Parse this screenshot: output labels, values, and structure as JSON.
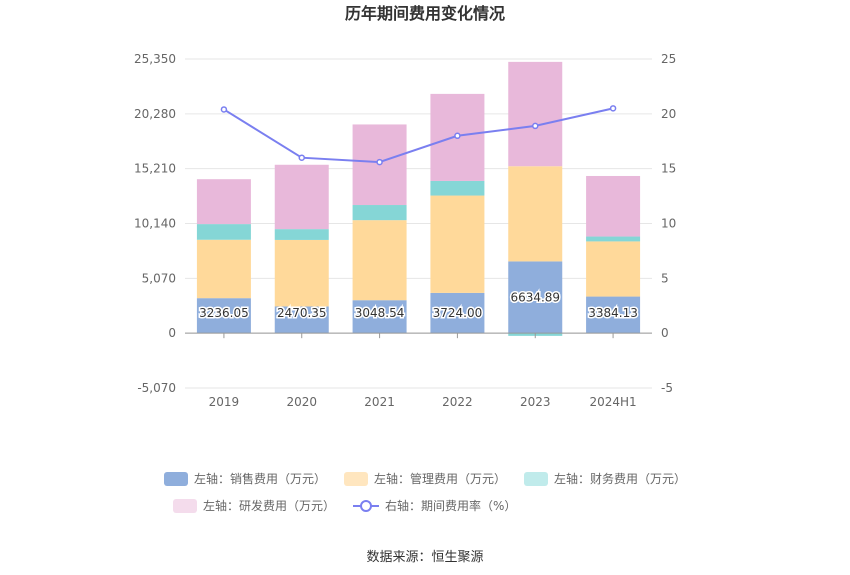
{
  "chart_data": {
    "type": "bar",
    "title": "历年期间费用变化情况",
    "categories": [
      "2019",
      "2020",
      "2021",
      "2022",
      "2023",
      "2024H1"
    ],
    "left_axis": {
      "min": -5070,
      "max": 25350,
      "ticks": [
        "-5,070",
        "0",
        "5,070",
        "10,140",
        "15,210",
        "20,280",
        "25,350"
      ],
      "tick_values": [
        -5070,
        0,
        5070,
        10140,
        15210,
        20280,
        25350
      ]
    },
    "right_axis": {
      "min": -5,
      "max": 25,
      "ticks": [
        "-5",
        "0",
        "5",
        "10",
        "15",
        "20",
        "25"
      ],
      "tick_values": [
        -5,
        0,
        5,
        10,
        15,
        20,
        25
      ]
    },
    "series": [
      {
        "name": "左轴：销售费用（万元）",
        "kind": "bar",
        "color": "#8FAEDC",
        "values": [
          3236.05,
          2470.35,
          3048.54,
          3724.0,
          6634.89,
          3384.13
        ],
        "labels": [
          "3236.05",
          "2470.35",
          "3048.54",
          "3724.00",
          "6634.89",
          "3384.13"
        ]
      },
      {
        "name": "左轴：管理费用（万元）",
        "kind": "bar",
        "color": "#FFD99A",
        "values": [
          5400,
          6150,
          7400,
          9000,
          8800,
          5100
        ]
      },
      {
        "name": "左轴：财务费用（万元）",
        "kind": "bar",
        "color": "#85D6D6",
        "values": [
          1450,
          1000,
          1400,
          1350,
          -250,
          450
        ]
      },
      {
        "name": "左轴：研发费用（万元）",
        "kind": "bar",
        "color": "#E8B8DA",
        "values": [
          4150,
          5950,
          7450,
          8050,
          9650,
          5600
        ]
      },
      {
        "name": "右轴：期间费用率（%）",
        "kind": "line",
        "color": "#7A7FF0",
        "values": [
          20.4,
          16.0,
          15.6,
          18.0,
          18.9,
          20.5
        ]
      }
    ],
    "legend_position": "bottom",
    "grid": true
  },
  "source_text": "数据来源：恒生聚源"
}
